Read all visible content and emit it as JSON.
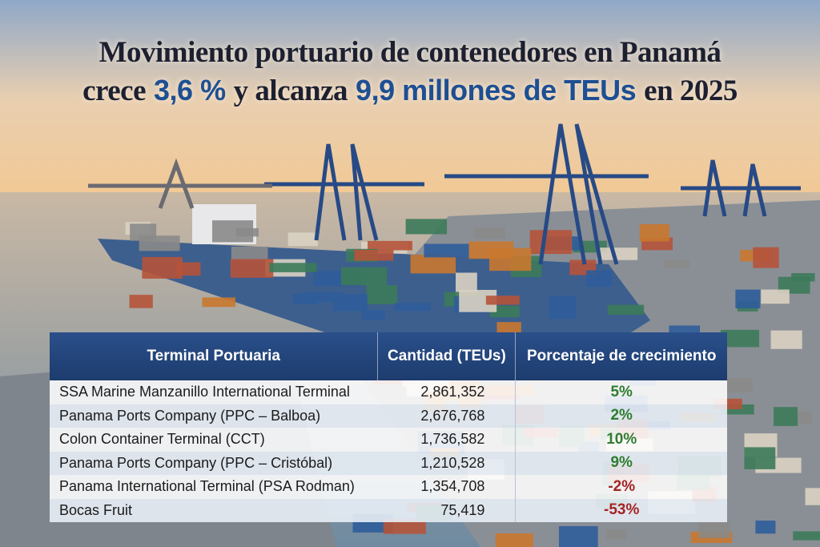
{
  "title": {
    "line1": "Movimiento portuario de contenedores en Panamá",
    "line2": [
      {
        "text": "crece",
        "highlight": false
      },
      {
        "text": "3,6 %",
        "highlight": true
      },
      {
        "text": "y alcanza",
        "highlight": false
      },
      {
        "text": "9,9 millones de TEUs",
        "highlight": true
      },
      {
        "text": "en 2025",
        "highlight": false
      }
    ]
  },
  "table": {
    "headers": [
      "Terminal Portuaria",
      "Cantidad (TEUs)",
      "Porcentaje de crecimiento"
    ],
    "rows": [
      [
        "SSA Marine Manzanillo International Terminal",
        "2,861,352",
        "5%"
      ],
      [
        "Panama Ports Company (PPC – Balboa)",
        "2,676,768",
        "2%"
      ],
      [
        "Colon Container Terminal (CCT)",
        "1,736,582",
        "10%"
      ],
      [
        "Panama Ports Company (PPC – Cristóbal)",
        "1,210,528",
        "9%"
      ],
      [
        "Panama International Terminal (PSA Rodman)",
        "1,354,708",
        "-2%"
      ],
      [
        "Bocas Fruit",
        "75,419",
        "-53%"
      ]
    ]
  }
}
